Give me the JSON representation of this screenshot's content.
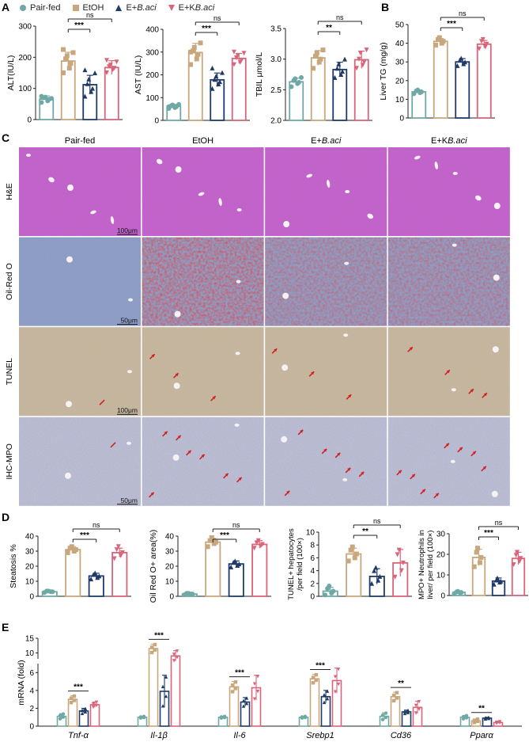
{
  "legend": [
    {
      "label": "Pair-fed",
      "color": "#6fa9a5",
      "shape": "circle"
    },
    {
      "label": "EtOH",
      "color": "#c9a77c",
      "shape": "square"
    },
    {
      "label": "E+",
      "label_italic": "B.aci",
      "color": "#1f3a68",
      "shape": "triangle-up"
    },
    {
      "label": "E+K",
      "label_italic": "B.aci",
      "color": "#d9657a",
      "shape": "triangle-down"
    }
  ],
  "colors": {
    "pair": "#6fa9a5",
    "etoh": "#c9a77c",
    "baci": "#1f3a68",
    "kbaci": "#d9657a"
  },
  "panel_labels": {
    "A": "A",
    "B": "B",
    "C": "C",
    "D": "D",
    "E": "E"
  },
  "histology": {
    "columns": [
      {
        "label": "Pair-fed"
      },
      {
        "label": "EtOH"
      },
      {
        "label": "E+",
        "italic": "B.aci"
      },
      {
        "label": "E+K",
        "italic": "B.aci"
      }
    ],
    "rows": [
      {
        "label": "H&E",
        "scale": "100μm",
        "base": "#c060c8"
      },
      {
        "label": "Oil-Red O",
        "scale": "50μm",
        "base": "#8fa0c4"
      },
      {
        "label": "TUNEL",
        "scale": "100μm",
        "base": "#c8b89c"
      },
      {
        "label": "IHC-MPO",
        "scale": "50μm",
        "base": "#c4c6d2"
      }
    ]
  },
  "chart_data": [
    {
      "id": "alt",
      "panel": "A",
      "type": "bar",
      "ylabel": "ALT(IU/L)",
      "ylim": [
        0,
        300
      ],
      "yticks": [
        0,
        100,
        200,
        300
      ],
      "series": [
        {
          "group": "Pair-fed",
          "values": [
            66
          ]
        },
        {
          "group": "EtOH",
          "values": [
            188
          ]
        },
        {
          "group": "E+B.aci",
          "values": [
            112
          ]
        },
        {
          "group": "E+KB.aci",
          "values": [
            167
          ]
        }
      ],
      "errors": [
        10,
        28,
        30,
        22
      ],
      "points": [
        [
          55,
          60,
          65,
          70,
          72,
          68,
          75
        ],
        [
          150,
          165,
          180,
          195,
          205,
          215,
          225
        ],
        [
          75,
          90,
          100,
          115,
          130,
          150,
          160
        ],
        [
          150,
          160,
          165,
          170,
          175,
          185,
          190
        ]
      ],
      "sig": [
        {
          "a": 1,
          "b": 2,
          "label": "***"
        },
        {
          "a": 1,
          "b": 3,
          "label": "ns"
        }
      ]
    },
    {
      "id": "ast",
      "panel": "A",
      "type": "bar",
      "ylabel": "AST (IU/L)",
      "ylim": [
        0,
        400
      ],
      "yticks": [
        0,
        100,
        200,
        300,
        400
      ],
      "series": [
        {
          "group": "Pair-fed",
          "values": [
            62
          ]
        },
        {
          "group": "EtOH",
          "values": [
            298
          ]
        },
        {
          "group": "E+B.aci",
          "values": [
            178
          ]
        },
        {
          "group": "E+KB.aci",
          "values": [
            272
          ]
        }
      ],
      "errors": [
        8,
        40,
        30,
        22
      ],
      "points": [
        [
          52,
          56,
          60,
          64,
          68,
          70,
          60
        ],
        [
          245,
          270,
          290,
          305,
          320,
          340,
          300
        ],
        [
          140,
          160,
          170,
          180,
          195,
          210,
          230
        ],
        [
          245,
          255,
          265,
          275,
          285,
          295,
          300
        ]
      ],
      "sig": [
        {
          "a": 1,
          "b": 2,
          "label": "***"
        },
        {
          "a": 1,
          "b": 3,
          "label": "ns"
        }
      ]
    },
    {
      "id": "tbil",
      "panel": "A",
      "type": "bar",
      "ylabel": "TBIL μmol/L",
      "ylim": [
        2.0,
        3.5
      ],
      "yticks": [
        2.0,
        2.5,
        3.0,
        3.5
      ],
      "series": [
        {
          "group": "Pair-fed",
          "values": [
            2.63
          ]
        },
        {
          "group": "EtOH",
          "values": [
            3.02
          ]
        },
        {
          "group": "E+B.aci",
          "values": [
            2.83
          ]
        },
        {
          "group": "E+KB.aci",
          "values": [
            2.99
          ]
        }
      ],
      "errors": [
        0.06,
        0.12,
        0.12,
        0.14
      ],
      "points": [
        [
          2.55,
          2.6,
          2.62,
          2.65,
          2.68,
          2.7
        ],
        [
          2.85,
          2.95,
          3.0,
          3.05,
          3.1,
          3.15
        ],
        [
          2.7,
          2.75,
          2.8,
          2.85,
          2.92,
          3.0
        ],
        [
          2.85,
          2.9,
          2.95,
          3.0,
          3.1,
          3.15
        ]
      ],
      "sig": [
        {
          "a": 1,
          "b": 2,
          "label": "**"
        },
        {
          "a": 1,
          "b": 3,
          "label": "ns"
        }
      ]
    },
    {
      "id": "tg",
      "panel": "B",
      "type": "bar",
      "ylabel": "Liver TG (mg/g)",
      "ylim": [
        0,
        50
      ],
      "yticks": [
        0,
        10,
        20,
        30,
        40,
        50
      ],
      "series": [
        {
          "group": "Pair-fed",
          "values": [
            14
          ]
        },
        {
          "group": "EtOH",
          "values": [
            41
          ]
        },
        {
          "group": "E+B.aci",
          "values": [
            30
          ]
        },
        {
          "group": "E+KB.aci",
          "values": [
            39.5
          ]
        }
      ],
      "errors": [
        1,
        1.5,
        1.8,
        2
      ],
      "points": [
        [
          13,
          13.5,
          14,
          14.5,
          15
        ],
        [
          39,
          40,
          41,
          42,
          43
        ],
        [
          28,
          29,
          30,
          31,
          32
        ],
        [
          37,
          38,
          39.5,
          41,
          42
        ]
      ],
      "sig": [
        {
          "a": 1,
          "b": 2,
          "label": "***"
        },
        {
          "a": 1,
          "b": 3,
          "label": "ns"
        }
      ]
    },
    {
      "id": "steatosis",
      "panel": "D",
      "type": "bar",
      "ylabel": "Steatosis %",
      "ylim": [
        0,
        40
      ],
      "yticks": [
        0,
        10,
        20,
        30,
        40
      ],
      "series": [
        {
          "group": "Pair-fed",
          "values": [
            3
          ]
        },
        {
          "group": "EtOH",
          "values": [
            31
          ]
        },
        {
          "group": "E+B.aci",
          "values": [
            13.5
          ]
        },
        {
          "group": "E+KB.aci",
          "values": [
            29
          ]
        }
      ],
      "errors": [
        0.5,
        2,
        1.8,
        3
      ],
      "points": [
        [
          2.5,
          3,
          3,
          3.5,
          3.5
        ],
        [
          29,
          30,
          31,
          32,
          33
        ],
        [
          11.5,
          12.5,
          13.5,
          14.5,
          15.5
        ],
        [
          25,
          27,
          29,
          31,
          33
        ]
      ],
      "sig": [
        {
          "a": 1,
          "b": 2,
          "label": "***"
        },
        {
          "a": 1,
          "b": 3,
          "label": "ns"
        }
      ]
    },
    {
      "id": "oilred",
      "panel": "D",
      "type": "bar",
      "ylabel": "Oil Red O+ area(%)",
      "ylim": [
        0,
        40
      ],
      "yticks": [
        0,
        10,
        20,
        30,
        40
      ],
      "series": [
        {
          "group": "Pair-fed",
          "values": [
            1.5
          ]
        },
        {
          "group": "EtOH",
          "values": [
            36
          ]
        },
        {
          "group": "E+B.aci",
          "values": [
            21.5
          ]
        },
        {
          "group": "E+KB.aci",
          "values": [
            34.5
          ]
        }
      ],
      "errors": [
        0.5,
        2.5,
        2,
        2.5
      ],
      "points": [
        [
          1,
          1.5,
          1.5,
          2,
          2
        ],
        [
          33,
          35,
          36,
          37,
          39
        ],
        [
          19.5,
          20.5,
          21.5,
          22.5,
          23.5
        ],
        [
          32,
          33.5,
          34.5,
          35.5,
          37
        ]
      ],
      "sig": [
        {
          "a": 1,
          "b": 2,
          "label": "***"
        },
        {
          "a": 1,
          "b": 3,
          "label": "ns"
        }
      ]
    },
    {
      "id": "tunel",
      "panel": "D",
      "type": "bar",
      "ylabel": "TUNEL+ hepatocytes /per field (100×)",
      "ylim": [
        0,
        10
      ],
      "yticks": [
        0,
        2,
        4,
        6,
        8,
        10
      ],
      "series": [
        {
          "group": "Pair-fed",
          "values": [
            0.8
          ]
        },
        {
          "group": "EtOH",
          "values": [
            6.6
          ]
        },
        {
          "group": "E+B.aci",
          "values": [
            3.1
          ]
        },
        {
          "group": "E+KB.aci",
          "values": [
            5.2
          ]
        }
      ],
      "errors": [
        0.6,
        0.9,
        1.2,
        2.1
      ],
      "points": [
        [
          0.2,
          0.5,
          0.8,
          1.2,
          1.6
        ],
        [
          5.5,
          6.0,
          6.6,
          7.2,
          7.7
        ],
        [
          2.0,
          2.5,
          3.1,
          4.0,
          4.5
        ],
        [
          3.0,
          4.0,
          5.2,
          6.5,
          7.2
        ]
      ],
      "sig": [
        {
          "a": 1,
          "b": 2,
          "label": "**"
        },
        {
          "a": 1,
          "b": 3,
          "label": "ns"
        }
      ]
    },
    {
      "id": "mpo",
      "panel": "D",
      "type": "bar",
      "ylabel": "MPO+ Neutrophils in liver/ per field (100×)",
      "ylim": [
        0,
        30
      ],
      "yticks": [
        0,
        10,
        20,
        30
      ],
      "series": [
        {
          "group": "Pair-fed",
          "values": [
            1.5
          ]
        },
        {
          "group": "EtOH",
          "values": [
            18.5
          ]
        },
        {
          "group": "E+B.aci",
          "values": [
            7
          ]
        },
        {
          "group": "E+KB.aci",
          "values": [
            18
          ]
        }
      ],
      "errors": [
        0.4,
        4,
        1.5,
        3
      ],
      "points": [
        [
          1,
          1.3,
          1.5,
          1.8,
          2
        ],
        [
          14,
          16,
          18.5,
          21,
          23
        ],
        [
          5.5,
          6.5,
          7,
          7.5,
          8.5
        ],
        [
          15,
          16.5,
          18,
          19.5,
          21
        ]
      ],
      "sig": [
        {
          "a": 1,
          "b": 2,
          "label": "***"
        },
        {
          "a": 1,
          "b": 3,
          "label": "ns"
        }
      ]
    },
    {
      "id": "mrna",
      "panel": "E",
      "type": "bar",
      "ylabel": "mRNA (fold)",
      "ylim": [
        0,
        15
      ],
      "yticks": [
        0,
        2,
        4,
        6,
        10,
        15
      ],
      "axis_break": [
        7,
        8
      ],
      "categories": [
        "Tnf-α",
        "Il-1β",
        "Il-6",
        "Srebp1",
        "Cd36",
        "Pparα"
      ],
      "series": [
        {
          "group": "Pair-fed",
          "values": [
            1.1,
            1.0,
            1.0,
            1.0,
            1.1,
            1.0
          ]
        },
        {
          "group": "EtOH",
          "values": [
            3.0,
            11.5,
            4.4,
            5.3,
            3.3,
            0.6
          ]
        },
        {
          "group": "E+B.aci",
          "values": [
            1.7,
            3.9,
            2.7,
            3.3,
            1.6,
            0.9
          ]
        },
        {
          "group": "E+KB.aci",
          "values": [
            2.4,
            9.0,
            4.3,
            5.1,
            2.1,
            0.4
          ]
        }
      ],
      "errors": [
        [
          0.3,
          0.1,
          0.1,
          0.1,
          0.4,
          0.2
        ],
        [
          0.4,
          1.5,
          0.6,
          0.5,
          0.5,
          0.2
        ],
        [
          0.3,
          1.8,
          0.5,
          0.7,
          0.2,
          0.1
        ],
        [
          0.3,
          1.8,
          1.4,
          1.4,
          0.7,
          0.1
        ]
      ],
      "sig": [
        {
          "cat": 0,
          "a": 1,
          "b": 2,
          "label": "***"
        },
        {
          "cat": 1,
          "a": 1,
          "b": 2,
          "label": "***"
        },
        {
          "cat": 2,
          "a": 1,
          "b": 2,
          "label": "***"
        },
        {
          "cat": 3,
          "a": 1,
          "b": 2,
          "label": "***"
        },
        {
          "cat": 4,
          "a": 1,
          "b": 2,
          "label": "**"
        },
        {
          "cat": 5,
          "a": 1,
          "b": 2,
          "label": "**"
        }
      ]
    }
  ]
}
